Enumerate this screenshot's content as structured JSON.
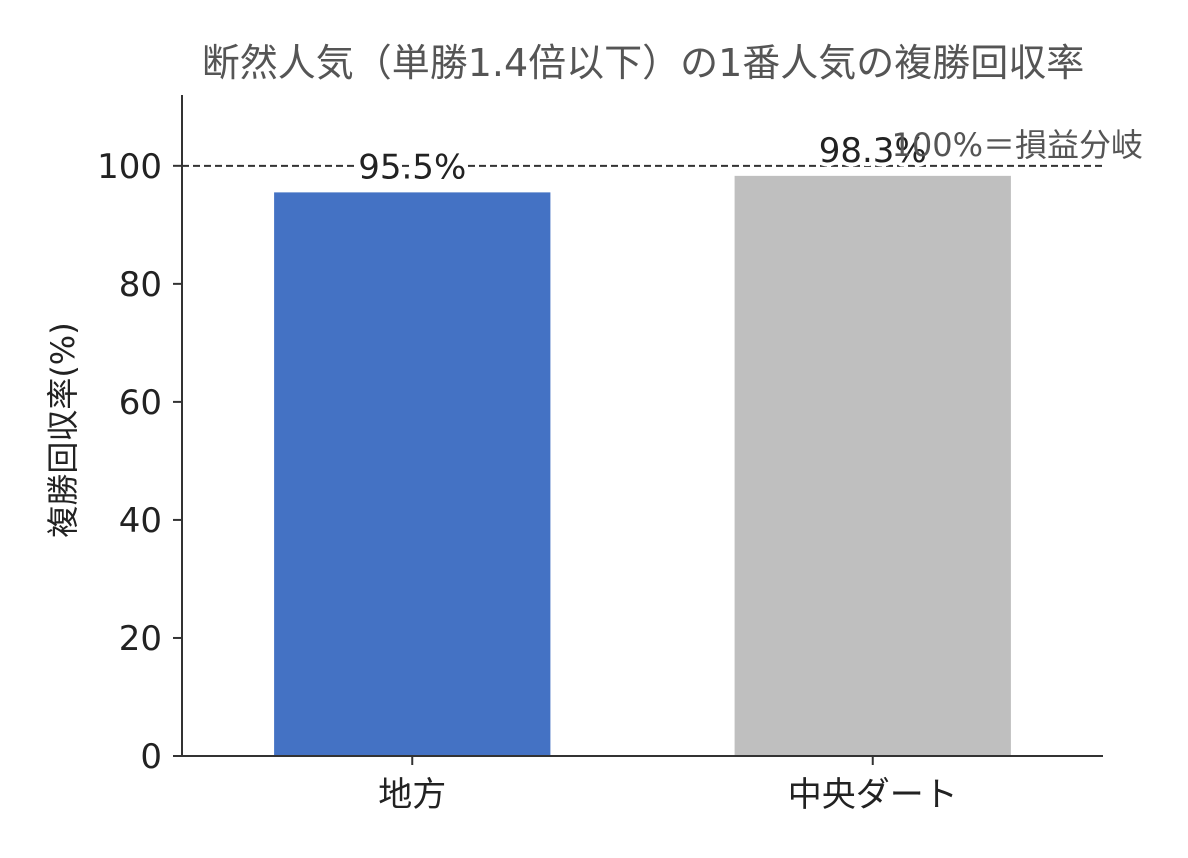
{
  "chart_data": {
    "type": "bar",
    "title": "断然人気（単勝1.4倍以下）の1番人気の複勝回収率",
    "xlabel": "",
    "ylabel": "複勝回収率(%)",
    "ylim": [
      0,
      112
    ],
    "yticks": [
      0,
      20,
      40,
      60,
      80,
      100
    ],
    "categories": [
      "地方",
      "中央ダート"
    ],
    "values": [
      95.5,
      98.3
    ],
    "data_labels": [
      "95.5%",
      "98.3%"
    ],
    "colors": [
      "#4472c4",
      "#bfbfbf"
    ],
    "reference_line": {
      "y": 100,
      "label": "100%＝損益分岐",
      "style": "dashed",
      "color": "#333333"
    },
    "grid": false,
    "legend": "none"
  }
}
